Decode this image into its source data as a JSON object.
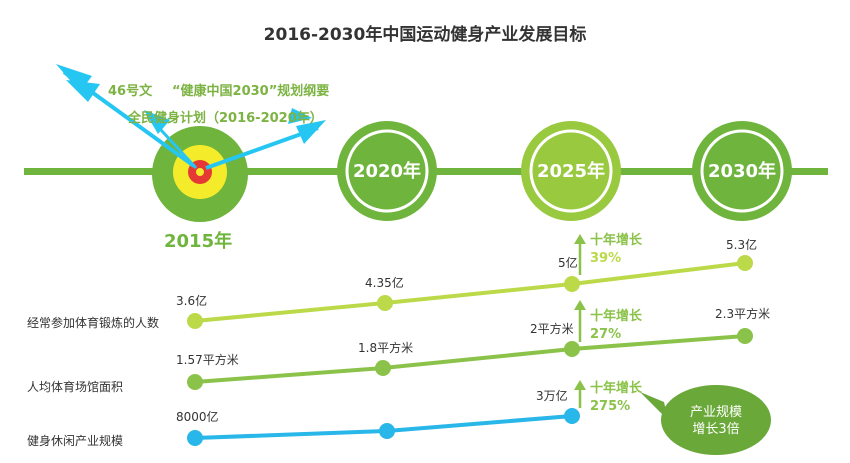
{
  "title": "2016-2030年中国运动健身产业发展目标",
  "timeline": {
    "year_2015": "2015年",
    "milestones": [
      "2020年",
      "2025年",
      "2030年"
    ]
  },
  "plans": {
    "doc_46": "46号文",
    "healthy_china": "“健康中国2030”规划纲要",
    "fitness_plan": "全民健身计划（2016-2020年）"
  },
  "rows": [
    {
      "label": "经常参加体育锻炼的人数",
      "values": [
        "3.6亿",
        "4.35亿",
        "5亿",
        "5.3亿"
      ],
      "growth_title": "十年增长",
      "growth_value": "39%"
    },
    {
      "label": "人均体育场馆面积",
      "values": [
        "1.57平方米",
        "1.8平方米",
        "2平方米",
        "2.3平方米"
      ],
      "growth_title": "十年增长",
      "growth_value": "27%"
    },
    {
      "label": "健身休闲产业规模",
      "values": [
        "8000亿",
        "",
        "3万亿",
        ""
      ],
      "growth_title": "十年增长",
      "growth_value": "275%"
    }
  ],
  "bubble": {
    "line1": "产业规模",
    "line2": "增长3倍"
  },
  "colors": {
    "timeline_green": "#6fb43c",
    "circle_light_green": "#99c93f",
    "row1_line": "#bcd94a",
    "row2_line": "#8bc34a",
    "row3_line": "#29b6e8",
    "growth_green": "#8bc34a",
    "target_yellow": "#f4ec2a",
    "target_red": "#e53935",
    "arrow_blue": "#26c6f2",
    "bubble_green": "#6aa839"
  },
  "icons": [
    "dart-arrow-icon",
    "bullseye-target-icon",
    "up-arrow-icon"
  ]
}
